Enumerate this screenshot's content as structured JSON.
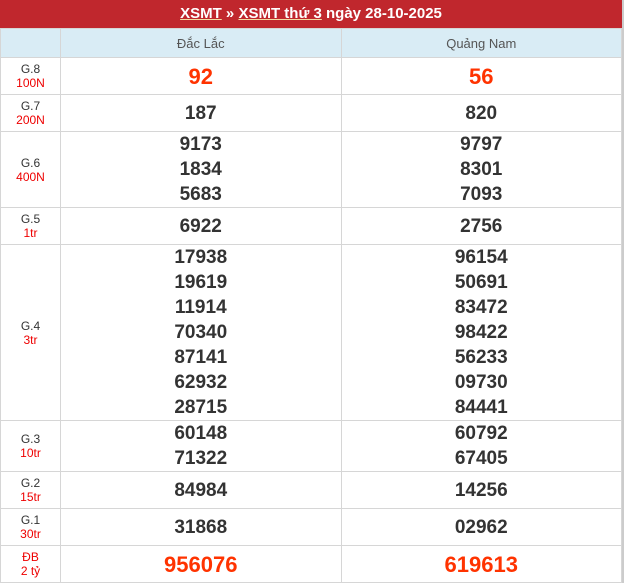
{
  "header": {
    "link1": "XSMT",
    "sep": " » ",
    "link2": "XSMT thứ 3",
    "date_text": " ngày 28-10-2025"
  },
  "columns": [
    "Đắc Lắc",
    "Quảng Nam"
  ],
  "rows": [
    {
      "name": "G.8",
      "prize": "100N",
      "big": true,
      "values": [
        [
          "92"
        ],
        [
          "56"
        ]
      ]
    },
    {
      "name": "G.7",
      "prize": "200N",
      "values": [
        [
          "187"
        ],
        [
          "820"
        ]
      ]
    },
    {
      "name": "G.6",
      "prize": "400N",
      "values": [
        [
          "9173",
          "1834",
          "5683"
        ],
        [
          "9797",
          "8301",
          "7093"
        ]
      ]
    },
    {
      "name": "G.5",
      "prize": "1tr",
      "values": [
        [
          "6922"
        ],
        [
          "2756"
        ]
      ]
    },
    {
      "name": "G.4",
      "prize": "3tr",
      "values": [
        [
          "17938",
          "19619",
          "11914",
          "70340",
          "87141",
          "62932",
          "28715"
        ],
        [
          "96154",
          "50691",
          "83472",
          "98422",
          "56233",
          "09730",
          "84441"
        ]
      ]
    },
    {
      "name": "G.3",
      "prize": "10tr",
      "values": [
        [
          "60148",
          "71322"
        ],
        [
          "60792",
          "67405"
        ]
      ]
    },
    {
      "name": "G.2",
      "prize": "15tr",
      "values": [
        [
          "84984"
        ],
        [
          "14256"
        ]
      ]
    },
    {
      "name": "G.1",
      "prize": "30tr",
      "values": [
        [
          "31868"
        ],
        [
          "02962"
        ]
      ]
    },
    {
      "name": "ĐB",
      "prize": "2 tỷ",
      "big": true,
      "special": true,
      "values": [
        [
          "956076"
        ],
        [
          "619613"
        ]
      ]
    }
  ],
  "colors": {
    "header_bg": "#c0272d",
    "col_header_bg": "#d9ecf5",
    "highlight": "#ff3300",
    "prize": "#ee0000"
  }
}
